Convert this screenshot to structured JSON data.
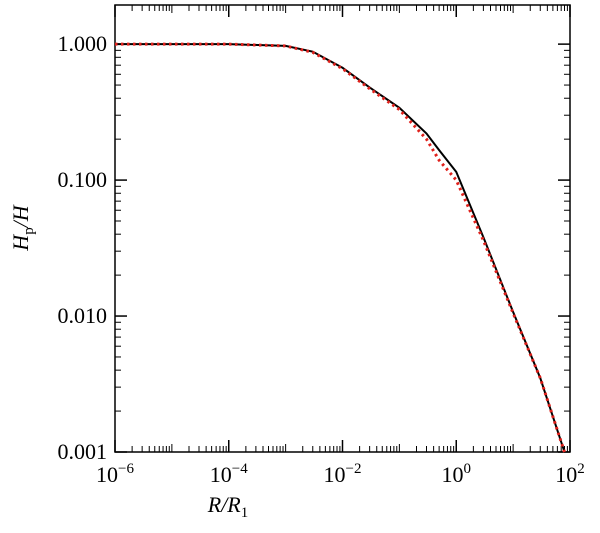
{
  "chart_data": {
    "type": "line",
    "xscale": "log",
    "yscale": "log",
    "xlabel": [
      "R",
      "/R",
      "1"
    ],
    "ylabel": [
      "H",
      "p",
      "/H"
    ],
    "xlim": [
      1e-06,
      100
    ],
    "ylim": [
      0.001,
      1.94
    ],
    "xticks": [
      {
        "value": 1e-06,
        "label": [
          "10",
          "−6"
        ]
      },
      {
        "value": 0.0001,
        "label": [
          "10",
          "−4"
        ]
      },
      {
        "value": 0.01,
        "label": [
          "10",
          "−2"
        ]
      },
      {
        "value": 1,
        "label": [
          "10",
          "0"
        ]
      },
      {
        "value": 100,
        "label": [
          "10",
          "2"
        ]
      }
    ],
    "yticks": [
      0.001,
      {
        "value": 0.01,
        "label": "0.010"
      },
      {
        "value": 0.1,
        "label": "0.100"
      },
      {
        "value": 1,
        "label": "1.000"
      }
    ],
    "x": [
      1e-06,
      1e-05,
      0.0001,
      0.001,
      0.003,
      0.01,
      0.03,
      0.1,
      0.3,
      0.5,
      1,
      3,
      10,
      30,
      80
    ],
    "series": [
      {
        "color": "#000000",
        "dash": "solid",
        "values": [
          1,
          1,
          1,
          0.97,
          0.88,
          0.67,
          0.48,
          0.34,
          0.22,
          0.166,
          0.115,
          0.038,
          0.0107,
          0.0035,
          0.001
        ]
      },
      {
        "color": "#e0201b",
        "dash": "dotted",
        "values": [
          1,
          1,
          1,
          0.97,
          0.87,
          0.66,
          0.47,
          0.33,
          0.2,
          0.14,
          0.1,
          0.036,
          0.0105,
          0.0035,
          0.001
        ]
      }
    ]
  }
}
